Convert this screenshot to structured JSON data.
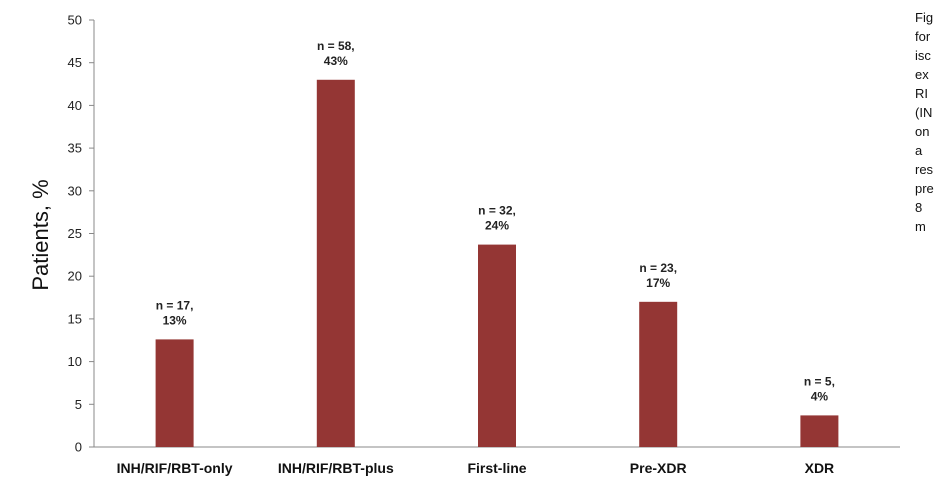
{
  "chart_data": {
    "type": "bar",
    "categories": [
      "INH/RIF/RBT-only",
      "INH/RIF/RBT-plus",
      "First-line",
      "Pre-XDR",
      "XDR"
    ],
    "values": [
      12.6,
      43,
      23.7,
      17,
      3.7
    ],
    "data_labels": [
      [
        "n = 17,",
        "13%"
      ],
      [
        "n = 58,",
        "43%"
      ],
      [
        "n = 32,",
        "24%"
      ],
      [
        "n = 23,",
        "17%"
      ],
      [
        "n = 5,",
        "4%"
      ]
    ],
    "ylabel": "Patients, %",
    "ylim": [
      0,
      50
    ],
    "yticks": [
      0,
      5,
      10,
      15,
      20,
      25,
      30,
      35,
      40,
      45,
      50
    ],
    "bar_color": "#943634",
    "grid": false,
    "legend": "none"
  },
  "caption_fragments": [
    "Fig",
    "for",
    "isc",
    "ex",
    "RI",
    "(IN",
    "on",
    "a",
    "res",
    "pre",
    "8",
    "m"
  ]
}
